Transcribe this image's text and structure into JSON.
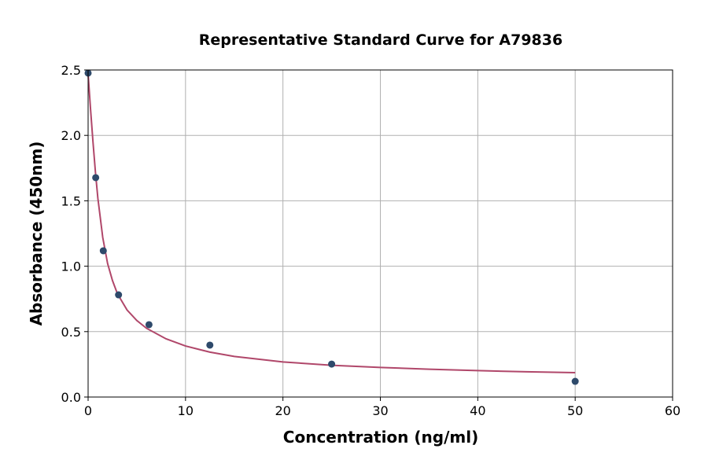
{
  "chart_data": {
    "type": "scatter",
    "title": "Representative Standard Curve for A79836",
    "xlabel": "Concentration (ng/ml)",
    "ylabel": "Absorbance (450nm)",
    "xlim": [
      0,
      60
    ],
    "ylim": [
      0,
      2.5
    ],
    "xticks": [
      0,
      10,
      20,
      30,
      40,
      50,
      60
    ],
    "yticks": [
      0.0,
      0.5,
      1.0,
      1.5,
      2.0,
      2.5
    ],
    "xtick_labels": [
      "0",
      "10",
      "20",
      "30",
      "40",
      "50",
      "60"
    ],
    "ytick_labels": [
      "0.0",
      "0.5",
      "1.0",
      "1.5",
      "2.0",
      "2.5"
    ],
    "grid": true,
    "points": [
      [
        0,
        2.476
      ],
      [
        0.78,
        1.677
      ],
      [
        1.56,
        1.118
      ],
      [
        3.125,
        0.781
      ],
      [
        6.25,
        0.553
      ],
      [
        12.5,
        0.397
      ],
      [
        25,
        0.252
      ],
      [
        50,
        0.12
      ]
    ],
    "fit_curve": [
      [
        0,
        2.47
      ],
      [
        0.25,
        2.2
      ],
      [
        0.5,
        1.95
      ],
      [
        0.75,
        1.72
      ],
      [
        1,
        1.52
      ],
      [
        1.5,
        1.22
      ],
      [
        2,
        1.02
      ],
      [
        2.5,
        0.89
      ],
      [
        3,
        0.79
      ],
      [
        4,
        0.665
      ],
      [
        5,
        0.585
      ],
      [
        6,
        0.525
      ],
      [
        8,
        0.445
      ],
      [
        10,
        0.39
      ],
      [
        12.5,
        0.343
      ],
      [
        15,
        0.31
      ],
      [
        20,
        0.268
      ],
      [
        25,
        0.243
      ],
      [
        30,
        0.226
      ],
      [
        35,
        0.213
      ],
      [
        40,
        0.202
      ],
      [
        45,
        0.193
      ],
      [
        50,
        0.186
      ]
    ],
    "colors": {
      "points": "#2e4a6b",
      "curve": "#b0476a"
    }
  }
}
